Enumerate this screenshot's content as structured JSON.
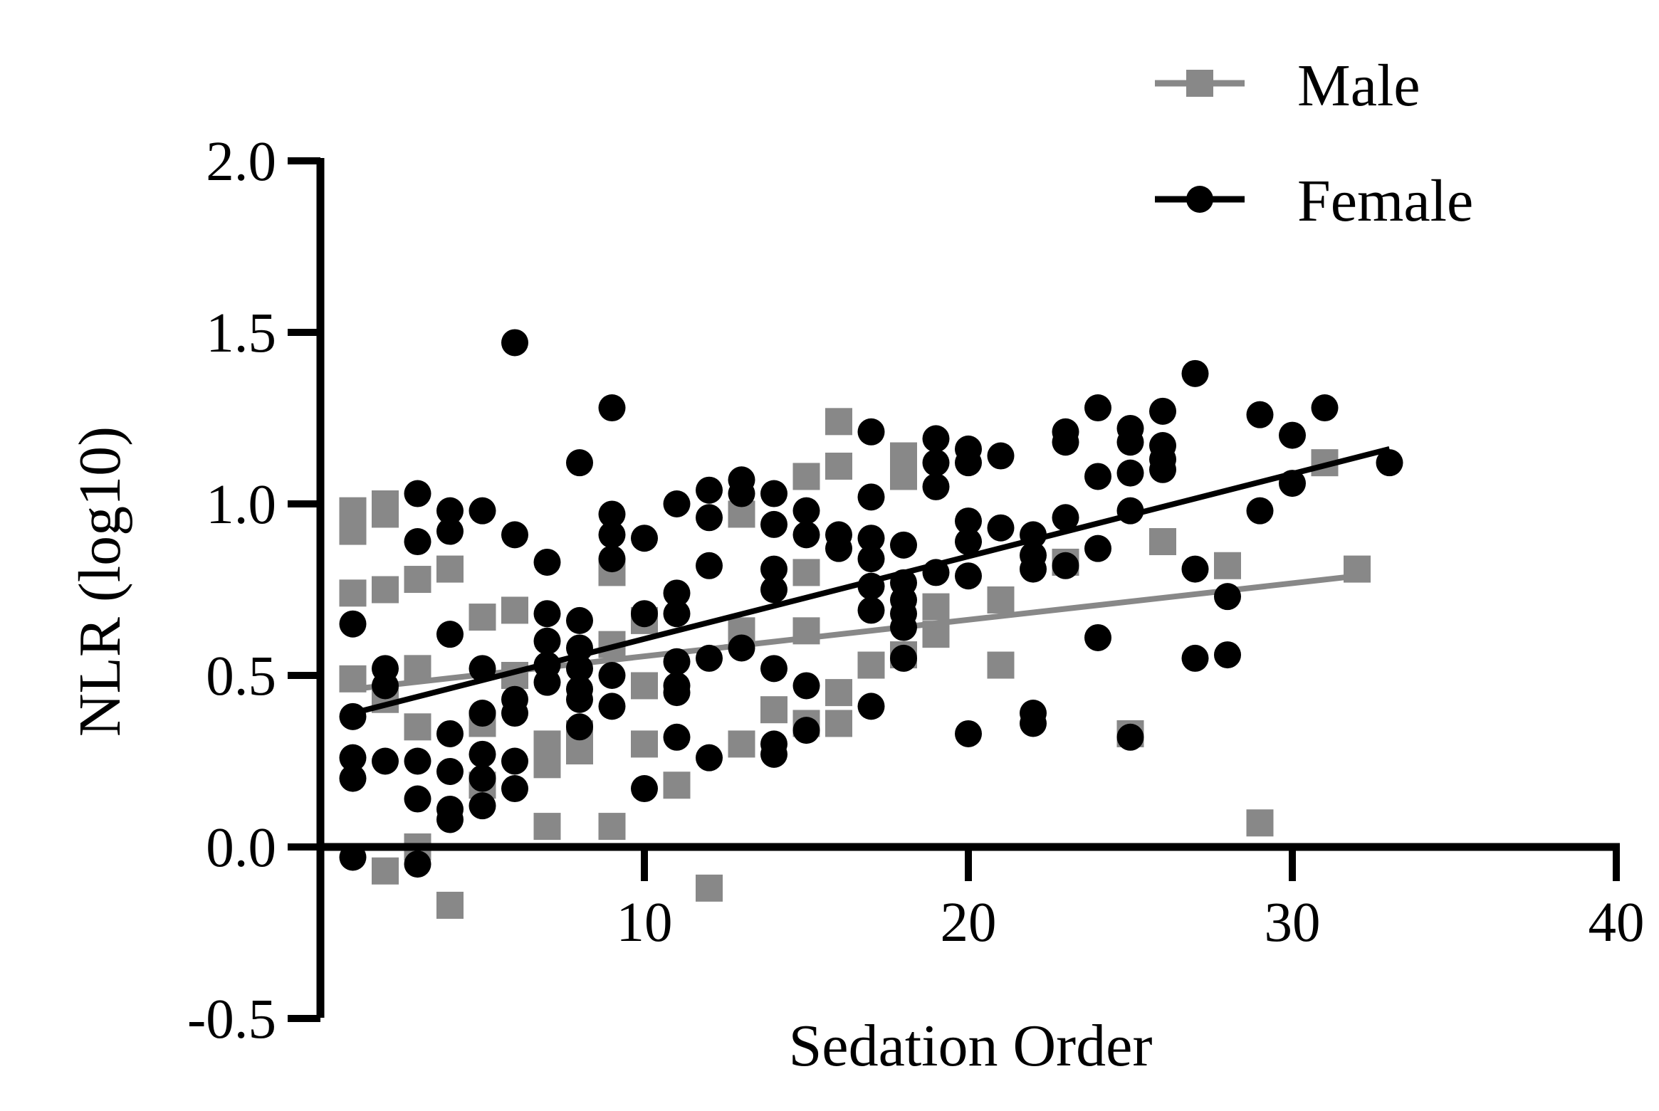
{
  "chart_data": {
    "type": "scatter",
    "xlabel": "Sedation Order",
    "ylabel": "NLR (log10)",
    "xlim": [
      0,
      40
    ],
    "ylim": [
      -0.5,
      2.0
    ],
    "x_ticks": [
      10,
      20,
      30,
      40
    ],
    "y_ticks": [
      -0.5,
      0.0,
      0.5,
      1.0,
      1.5,
      2.0
    ],
    "y_tick_labels": [
      "-0.5",
      "0.0",
      "0.5",
      "1.0",
      "1.5",
      "2.0"
    ],
    "x_tick_labels": [
      "10",
      "20",
      "30",
      "40"
    ],
    "grid": false,
    "legend_position": "top-right",
    "series": [
      {
        "name": "Male",
        "color": "#888888",
        "marker": "square",
        "points": [
          [
            1,
            0.98
          ],
          [
            1,
            0.92
          ],
          [
            1,
            0.74
          ],
          [
            1,
            0.49
          ],
          [
            2,
            1.0
          ],
          [
            2,
            0.97
          ],
          [
            2,
            0.75
          ],
          [
            2,
            0.43
          ],
          [
            2,
            -0.07
          ],
          [
            3,
            0.78
          ],
          [
            3,
            0.52
          ],
          [
            3,
            0.35
          ],
          [
            3,
            0.0
          ],
          [
            4,
            0.81
          ],
          [
            4,
            -0.17
          ],
          [
            5,
            0.67
          ],
          [
            5,
            0.36
          ],
          [
            5,
            0.18
          ],
          [
            6,
            0.69
          ],
          [
            6,
            0.5
          ],
          [
            7,
            0.3
          ],
          [
            7,
            0.24
          ],
          [
            7,
            0.06
          ],
          [
            8,
            0.33
          ],
          [
            8,
            0.28
          ],
          [
            9,
            0.8
          ],
          [
            9,
            0.59
          ],
          [
            9,
            0.06
          ],
          [
            10,
            0.66
          ],
          [
            10,
            0.47
          ],
          [
            10,
            0.3
          ],
          [
            11,
            0.18
          ],
          [
            12,
            -0.12
          ],
          [
            13,
            0.97
          ],
          [
            13,
            0.63
          ],
          [
            13,
            0.3
          ],
          [
            14,
            0.4
          ],
          [
            15,
            1.08
          ],
          [
            15,
            0.8
          ],
          [
            15,
            0.63
          ],
          [
            15,
            0.36
          ],
          [
            16,
            1.24
          ],
          [
            16,
            1.11
          ],
          [
            16,
            0.45
          ],
          [
            16,
            0.36
          ],
          [
            17,
            0.53
          ],
          [
            18,
            1.14
          ],
          [
            18,
            1.08
          ],
          [
            18,
            0.56
          ],
          [
            19,
            0.7
          ],
          [
            19,
            0.62
          ],
          [
            21,
            0.72
          ],
          [
            21,
            0.53
          ],
          [
            23,
            0.83
          ],
          [
            25,
            0.33
          ],
          [
            26,
            0.89
          ],
          [
            28,
            0.82
          ],
          [
            29,
            0.07
          ],
          [
            31,
            1.12
          ],
          [
            32,
            0.81
          ]
        ],
        "trend_line": {
          "x": [
            1,
            32
          ],
          "y": [
            0.46,
            0.79
          ]
        }
      },
      {
        "name": "Female",
        "color": "#000000",
        "marker": "circle",
        "points": [
          [
            1,
            0.65
          ],
          [
            1,
            0.38
          ],
          [
            1,
            0.26
          ],
          [
            1,
            0.2
          ],
          [
            1,
            -0.03
          ],
          [
            2,
            0.52
          ],
          [
            2,
            0.47
          ],
          [
            2,
            0.25
          ],
          [
            3,
            1.03
          ],
          [
            3,
            0.89
          ],
          [
            3,
            0.25
          ],
          [
            3,
            0.14
          ],
          [
            3,
            -0.05
          ],
          [
            4,
            0.98
          ],
          [
            4,
            0.92
          ],
          [
            4,
            0.62
          ],
          [
            4,
            0.33
          ],
          [
            4,
            0.22
          ],
          [
            4,
            0.11
          ],
          [
            4,
            0.08
          ],
          [
            5,
            0.98
          ],
          [
            5,
            0.52
          ],
          [
            5,
            0.39
          ],
          [
            5,
            0.27
          ],
          [
            5,
            0.2
          ],
          [
            5,
            0.12
          ],
          [
            6,
            1.47
          ],
          [
            6,
            0.91
          ],
          [
            6,
            0.43
          ],
          [
            6,
            0.39
          ],
          [
            6,
            0.25
          ],
          [
            6,
            0.17
          ],
          [
            7,
            0.83
          ],
          [
            7,
            0.68
          ],
          [
            7,
            0.6
          ],
          [
            7,
            0.53
          ],
          [
            7,
            0.48
          ],
          [
            8,
            1.12
          ],
          [
            8,
            0.66
          ],
          [
            8,
            0.58
          ],
          [
            8,
            0.52
          ],
          [
            8,
            0.46
          ],
          [
            8,
            0.43
          ],
          [
            8,
            0.35
          ],
          [
            9,
            1.28
          ],
          [
            9,
            0.97
          ],
          [
            9,
            0.91
          ],
          [
            9,
            0.84
          ],
          [
            9,
            0.5
          ],
          [
            9,
            0.41
          ],
          [
            10,
            0.9
          ],
          [
            10,
            0.68
          ],
          [
            10,
            0.17
          ],
          [
            11,
            1.0
          ],
          [
            11,
            0.74
          ],
          [
            11,
            0.68
          ],
          [
            11,
            0.54
          ],
          [
            11,
            0.47
          ],
          [
            11,
            0.45
          ],
          [
            11,
            0.32
          ],
          [
            12,
            1.04
          ],
          [
            12,
            0.96
          ],
          [
            12,
            0.82
          ],
          [
            12,
            0.55
          ],
          [
            12,
            0.26
          ],
          [
            13,
            1.07
          ],
          [
            13,
            1.03
          ],
          [
            13,
            0.58
          ],
          [
            14,
            1.03
          ],
          [
            14,
            0.94
          ],
          [
            14,
            0.81
          ],
          [
            14,
            0.75
          ],
          [
            14,
            0.52
          ],
          [
            14,
            0.3
          ],
          [
            14,
            0.27
          ],
          [
            15,
            0.98
          ],
          [
            15,
            0.91
          ],
          [
            15,
            0.47
          ],
          [
            15,
            0.34
          ],
          [
            16,
            0.91
          ],
          [
            16,
            0.87
          ],
          [
            17,
            1.21
          ],
          [
            17,
            1.02
          ],
          [
            17,
            0.9
          ],
          [
            17,
            0.84
          ],
          [
            17,
            0.76
          ],
          [
            17,
            0.69
          ],
          [
            17,
            0.41
          ],
          [
            18,
            0.88
          ],
          [
            18,
            0.77
          ],
          [
            18,
            0.72
          ],
          [
            18,
            0.68
          ],
          [
            18,
            0.64
          ],
          [
            18,
            0.55
          ],
          [
            19,
            1.19
          ],
          [
            19,
            1.12
          ],
          [
            19,
            1.05
          ],
          [
            19,
            0.8
          ],
          [
            20,
            1.16
          ],
          [
            20,
            1.12
          ],
          [
            20,
            0.95
          ],
          [
            20,
            0.89
          ],
          [
            20,
            0.79
          ],
          [
            20,
            0.33
          ],
          [
            21,
            1.14
          ],
          [
            21,
            0.93
          ],
          [
            22,
            0.91
          ],
          [
            22,
            0.85
          ],
          [
            22,
            0.81
          ],
          [
            22,
            0.39
          ],
          [
            22,
            0.36
          ],
          [
            23,
            1.21
          ],
          [
            23,
            1.18
          ],
          [
            23,
            0.96
          ],
          [
            23,
            0.82
          ],
          [
            24,
            1.28
          ],
          [
            24,
            1.08
          ],
          [
            24,
            0.87
          ],
          [
            24,
            0.61
          ],
          [
            25,
            1.22
          ],
          [
            25,
            1.18
          ],
          [
            25,
            1.09
          ],
          [
            25,
            0.98
          ],
          [
            25,
            0.32
          ],
          [
            26,
            1.27
          ],
          [
            26,
            1.17
          ],
          [
            26,
            1.13
          ],
          [
            26,
            1.1
          ],
          [
            27,
            1.38
          ],
          [
            27,
            0.81
          ],
          [
            27,
            0.55
          ],
          [
            28,
            0.73
          ],
          [
            28,
            0.56
          ],
          [
            29,
            1.26
          ],
          [
            29,
            0.98
          ],
          [
            30,
            1.2
          ],
          [
            30,
            1.06
          ],
          [
            31,
            1.28
          ],
          [
            33,
            1.12
          ]
        ],
        "trend_line": {
          "x": [
            1,
            33
          ],
          "y": [
            0.39,
            1.16
          ]
        }
      }
    ]
  }
}
